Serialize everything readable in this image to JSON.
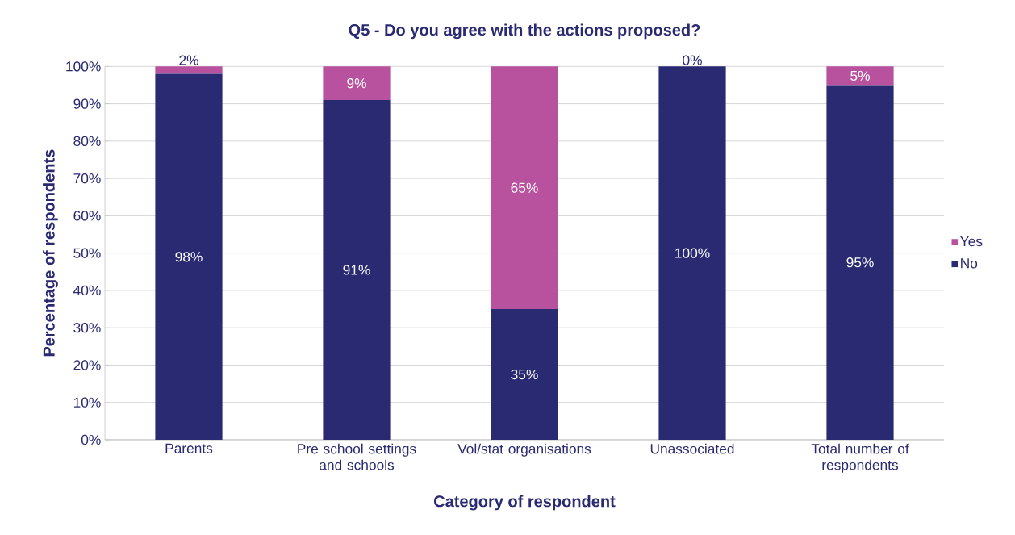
{
  "chart_data": {
    "type": "bar",
    "stacked": true,
    "title": "Q5 - Do you agree with the actions proposed?",
    "xlabel": "Category of respondent",
    "ylabel": "Percentage of respondents",
    "categories": [
      "Parents",
      "Pre school settings and schools",
      "Vol/stat organisations",
      "Unassociated",
      "Total number of respondents"
    ],
    "series": [
      {
        "name": "No",
        "color": "#2a2a72",
        "values": [
          98,
          91,
          35,
          100,
          95
        ],
        "value_labels": [
          "98%",
          "91%",
          "35%",
          "100%",
          "95%"
        ]
      },
      {
        "name": "Yes",
        "color": "#b8519e",
        "values": [
          2,
          9,
          65,
          0,
          5
        ],
        "value_labels": [
          "2%",
          "9%",
          "65%",
          "0%",
          "5%"
        ]
      }
    ],
    "ylim": [
      0,
      100
    ],
    "yticks": [
      {
        "value": 0,
        "label": "0%"
      },
      {
        "value": 10,
        "label": "10%"
      },
      {
        "value": 20,
        "label": "20%"
      },
      {
        "value": 30,
        "label": "30%"
      },
      {
        "value": 40,
        "label": "40%"
      },
      {
        "value": 50,
        "label": "50%"
      },
      {
        "value": 60,
        "label": "60%"
      },
      {
        "value": 70,
        "label": "70%"
      },
      {
        "value": 80,
        "label": "80%"
      },
      {
        "value": 90,
        "label": "90%"
      },
      {
        "value": 100,
        "label": "100%"
      }
    ],
    "grid": "y",
    "legend": "right"
  }
}
